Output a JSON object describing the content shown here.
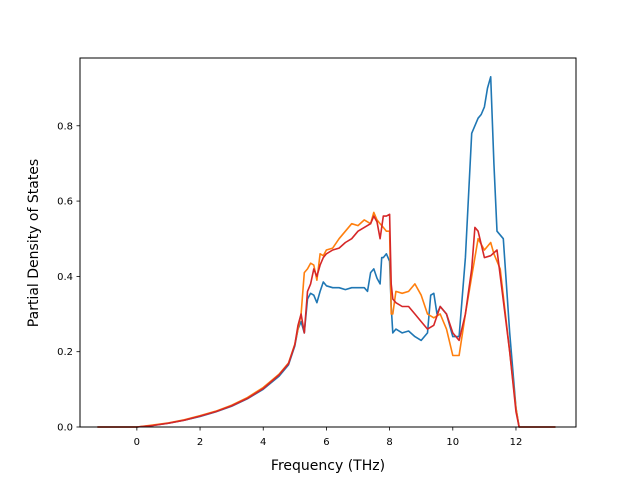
{
  "chart_data": {
    "type": "line",
    "title": "",
    "xlabel": "Frequency (THz)",
    "ylabel": "Partial Density of States",
    "xlim": [
      -1.8,
      13.9
    ],
    "ylim": [
      0.0,
      0.98
    ],
    "xticks": [
      0,
      2,
      4,
      6,
      8,
      10,
      12
    ],
    "xtick_labels": [
      "0",
      "2",
      "4",
      "6",
      "8",
      "10",
      "12"
    ],
    "yticks": [
      0.0,
      0.2,
      0.4,
      0.6,
      0.8
    ],
    "ytick_labels": [
      "0.0",
      "0.2",
      "0.4",
      "0.6",
      "0.8"
    ],
    "grid": false,
    "legend": false,
    "series": [
      {
        "color": "#1f77b4",
        "x": [
          -1.25,
          0.0,
          0.5,
          1.0,
          1.5,
          2.0,
          2.5,
          3.0,
          3.5,
          4.0,
          4.5,
          4.8,
          5.0,
          5.1,
          5.2,
          5.3,
          5.4,
          5.5,
          5.6,
          5.7,
          5.8,
          5.9,
          6.0,
          6.2,
          6.4,
          6.6,
          6.8,
          7.0,
          7.2,
          7.3,
          7.4,
          7.5,
          7.6,
          7.7,
          7.75,
          7.8,
          7.9,
          8.0,
          8.05,
          8.1,
          8.2,
          8.4,
          8.6,
          8.8,
          9.0,
          9.2,
          9.3,
          9.4,
          9.5,
          9.6,
          9.8,
          10.0,
          10.2,
          10.4,
          10.6,
          10.8,
          10.9,
          11.0,
          11.1,
          11.2,
          11.3,
          11.4,
          11.6,
          11.8,
          12.0,
          12.1,
          12.3,
          13.25
        ],
        "y": [
          0.0,
          0.0,
          0.004,
          0.01,
          0.018,
          0.028,
          0.04,
          0.055,
          0.075,
          0.1,
          0.135,
          0.165,
          0.215,
          0.26,
          0.28,
          0.25,
          0.34,
          0.355,
          0.35,
          0.33,
          0.36,
          0.385,
          0.375,
          0.37,
          0.37,
          0.365,
          0.37,
          0.37,
          0.37,
          0.36,
          0.41,
          0.42,
          0.395,
          0.38,
          0.45,
          0.45,
          0.46,
          0.44,
          0.32,
          0.25,
          0.26,
          0.25,
          0.255,
          0.24,
          0.23,
          0.25,
          0.35,
          0.355,
          0.3,
          0.32,
          0.3,
          0.24,
          0.24,
          0.45,
          0.78,
          0.82,
          0.83,
          0.85,
          0.9,
          0.93,
          0.7,
          0.52,
          0.5,
          0.25,
          0.05,
          0.0,
          0.0,
          0.0
        ]
      },
      {
        "color": "#ff7f0e",
        "x": [
          -1.25,
          0.0,
          0.5,
          1.0,
          1.5,
          2.0,
          2.5,
          3.0,
          3.5,
          4.0,
          4.5,
          4.8,
          5.0,
          5.1,
          5.2,
          5.3,
          5.4,
          5.5,
          5.6,
          5.7,
          5.8,
          5.9,
          6.0,
          6.2,
          6.4,
          6.6,
          6.8,
          7.0,
          7.2,
          7.4,
          7.5,
          7.6,
          7.7,
          7.8,
          7.9,
          8.0,
          8.05,
          8.1,
          8.2,
          8.4,
          8.6,
          8.8,
          9.0,
          9.2,
          9.4,
          9.6,
          9.8,
          10.0,
          10.2,
          10.4,
          10.6,
          10.8,
          11.0,
          11.2,
          11.3,
          11.5,
          11.8,
          12.0,
          12.1,
          12.3,
          13.25
        ],
        "y": [
          0.0,
          0.0,
          0.005,
          0.011,
          0.019,
          0.03,
          0.042,
          0.058,
          0.078,
          0.105,
          0.14,
          0.17,
          0.22,
          0.26,
          0.3,
          0.41,
          0.42,
          0.435,
          0.43,
          0.39,
          0.46,
          0.455,
          0.47,
          0.475,
          0.5,
          0.52,
          0.54,
          0.535,
          0.55,
          0.54,
          0.57,
          0.55,
          0.54,
          0.53,
          0.52,
          0.52,
          0.3,
          0.3,
          0.36,
          0.355,
          0.36,
          0.38,
          0.35,
          0.3,
          0.29,
          0.3,
          0.26,
          0.19,
          0.19,
          0.3,
          0.4,
          0.5,
          0.47,
          0.49,
          0.46,
          0.42,
          0.2,
          0.05,
          0.0,
          0.0,
          0.0
        ]
      },
      {
        "color": "#d62728",
        "x": [
          -1.25,
          0.0,
          0.5,
          1.0,
          1.5,
          2.0,
          2.5,
          3.0,
          3.5,
          4.0,
          4.5,
          4.8,
          5.0,
          5.1,
          5.2,
          5.3,
          5.4,
          5.5,
          5.6,
          5.7,
          5.8,
          5.9,
          6.0,
          6.2,
          6.4,
          6.6,
          6.8,
          7.0,
          7.2,
          7.4,
          7.5,
          7.6,
          7.7,
          7.8,
          7.9,
          8.0,
          8.05,
          8.1,
          8.2,
          8.4,
          8.6,
          8.8,
          9.0,
          9.2,
          9.4,
          9.6,
          9.8,
          10.0,
          10.2,
          10.4,
          10.6,
          10.7,
          10.8,
          11.0,
          11.2,
          11.4,
          11.8,
          12.0,
          12.1,
          12.3,
          13.25
        ],
        "y": [
          0.0,
          0.0,
          0.004,
          0.01,
          0.018,
          0.029,
          0.041,
          0.056,
          0.076,
          0.102,
          0.138,
          0.168,
          0.218,
          0.27,
          0.3,
          0.25,
          0.36,
          0.38,
          0.42,
          0.4,
          0.43,
          0.45,
          0.46,
          0.47,
          0.475,
          0.49,
          0.5,
          0.52,
          0.53,
          0.54,
          0.56,
          0.545,
          0.5,
          0.56,
          0.56,
          0.565,
          0.38,
          0.34,
          0.33,
          0.32,
          0.32,
          0.3,
          0.28,
          0.26,
          0.27,
          0.32,
          0.3,
          0.25,
          0.23,
          0.3,
          0.42,
          0.53,
          0.52,
          0.45,
          0.455,
          0.47,
          0.2,
          0.04,
          0.0,
          0.0,
          0.0
        ]
      }
    ]
  }
}
